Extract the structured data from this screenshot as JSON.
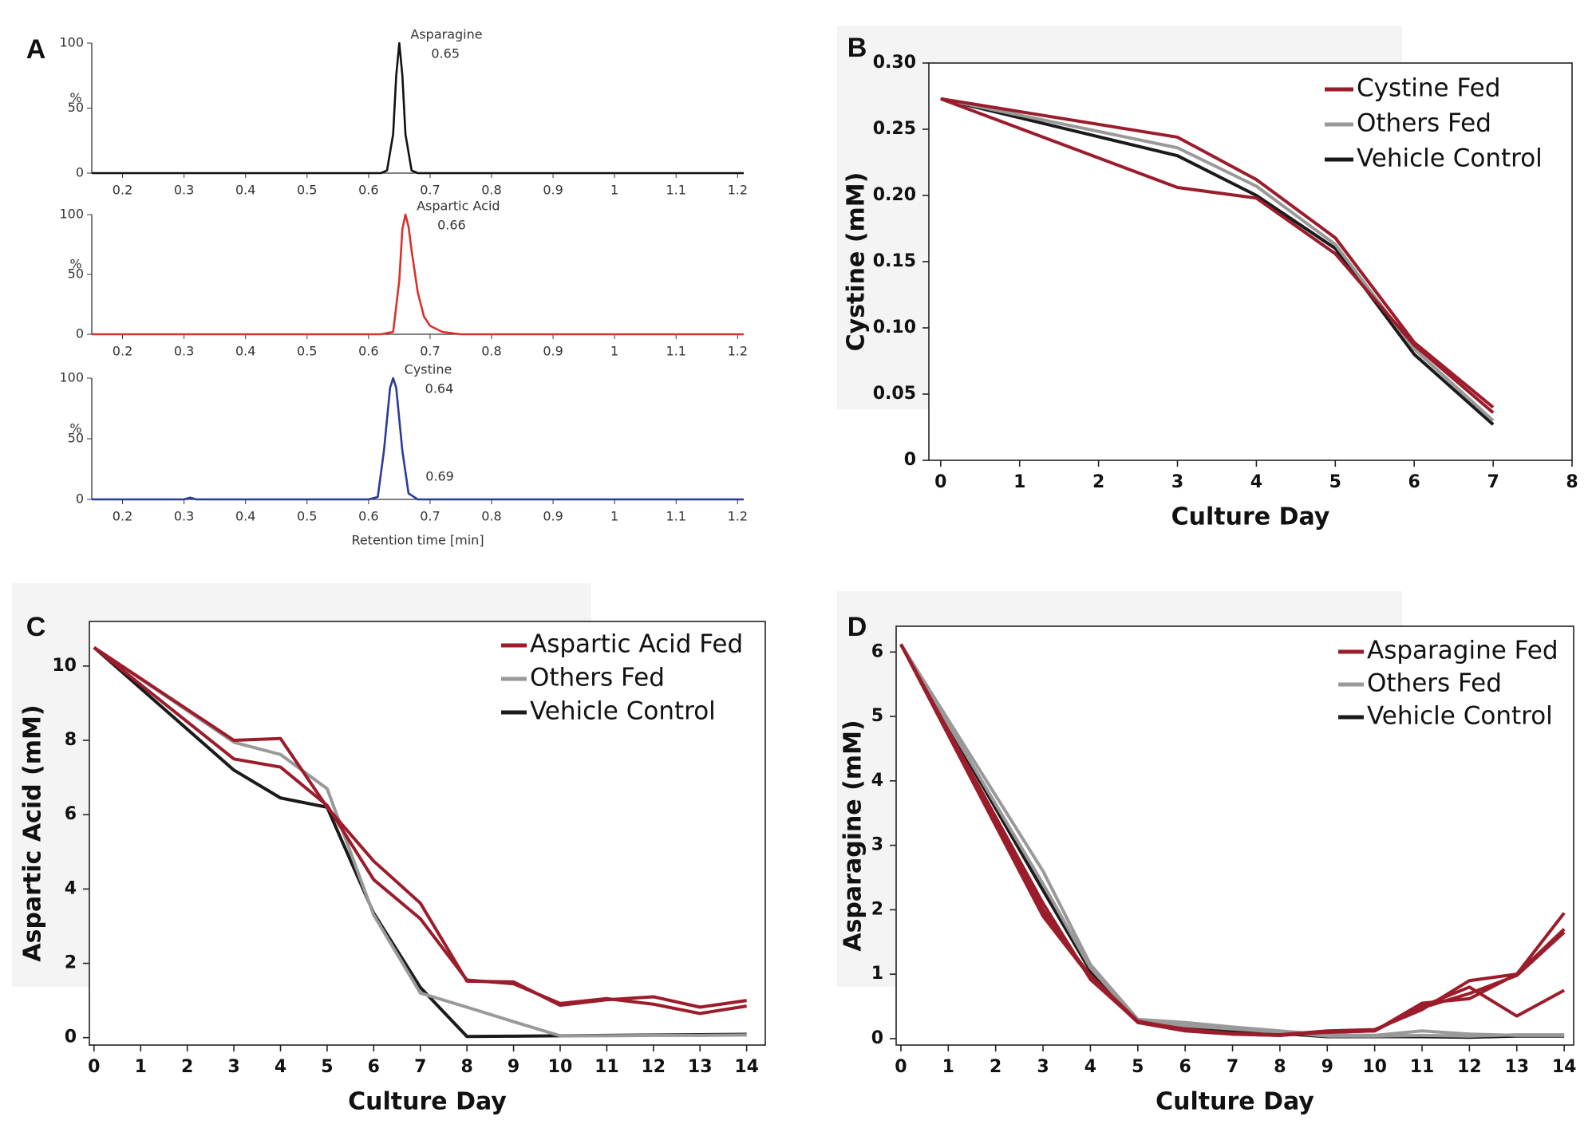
{
  "chart_data": [
    {
      "type": "chromatogram",
      "label": "A",
      "xlabel": "Retention time [min]",
      "ylabel": "%",
      "xlim": [
        0.15,
        1.21
      ],
      "xticks": [
        0.2,
        0.3,
        0.4,
        0.5,
        0.6,
        0.7,
        0.8,
        0.9,
        1,
        1.1,
        1.2
      ],
      "ylim": [
        0,
        100
      ],
      "yticks": [
        0,
        50,
        100
      ],
      "traces": [
        {
          "name": "Asparagine",
          "rt": 0.65,
          "color": "#111111",
          "x": [
            0.15,
            0.6,
            0.62,
            0.63,
            0.64,
            0.645,
            0.65,
            0.655,
            0.66,
            0.67,
            0.68,
            0.7,
            1.21
          ],
          "values": [
            0,
            0,
            0,
            2,
            30,
            75,
            100,
            75,
            30,
            2,
            0,
            0,
            0
          ]
        },
        {
          "name": "Aspartic Acid",
          "rt": 0.66,
          "color": "#d9312b",
          "x": [
            0.15,
            0.62,
            0.64,
            0.65,
            0.655,
            0.66,
            0.665,
            0.67,
            0.68,
            0.69,
            0.7,
            0.72,
            0.75,
            1.21
          ],
          "values": [
            0,
            0,
            2,
            45,
            88,
            100,
            90,
            70,
            35,
            15,
            7,
            2,
            0,
            0
          ]
        },
        {
          "name": "Cystine",
          "rt": 0.64,
          "secondary_rt": 0.69,
          "color": "#2a3a9a",
          "x": [
            0.15,
            0.3,
            0.31,
            0.32,
            0.6,
            0.615,
            0.625,
            0.635,
            0.64,
            0.645,
            0.655,
            0.665,
            0.68,
            1.21
          ],
          "values": [
            0,
            0,
            1.5,
            0,
            0,
            2,
            40,
            92,
            100,
            92,
            40,
            5,
            0,
            0
          ]
        }
      ]
    },
    {
      "type": "line",
      "label": "B",
      "xlabel": "Culture Day",
      "ylabel": "Cystine (mM)",
      "xlim": [
        -0.15,
        8
      ],
      "xticks": [
        0,
        1,
        2,
        3,
        4,
        5,
        6,
        7,
        8
      ],
      "ylim": [
        0,
        0.3
      ],
      "yticks": [
        0,
        0.05,
        {
          "value": 0.1,
          "label": "0.10"
        },
        0.15,
        {
          "value": 0.2,
          "label": "0.20"
        },
        0.25,
        {
          "value": 0.3,
          "label": "0.30"
        }
      ],
      "x": [
        0,
        3,
        4,
        5,
        6,
        7
      ],
      "series": [
        {
          "name": "Cystine Fed",
          "color": "#9b1c2a",
          "values": [
            [
              0.273,
              0.244,
              0.212,
              0.168,
              0.089,
              0.04
            ],
            [
              0.273,
              0.206,
              0.198,
              0.156,
              0.087,
              0.036
            ]
          ]
        },
        {
          "name": "Others Fed",
          "color": "#999999",
          "values": [
            [
              0.273,
              0.236,
              0.207,
              0.163,
              0.084,
              0.03
            ]
          ]
        },
        {
          "name": "Vehicle Control",
          "color": "#1a1a1a",
          "values": [
            [
              0.273,
              0.23,
              0.2,
              0.16,
              0.08,
              0.027
            ]
          ]
        }
      ]
    },
    {
      "type": "line",
      "label": "C",
      "xlabel": "Culture Day",
      "ylabel": "Aspartic Acid (mM)",
      "xlim": [
        -0.1,
        14.4
      ],
      "xticks": [
        0,
        1,
        2,
        3,
        4,
        5,
        6,
        7,
        8,
        9,
        10,
        11,
        12,
        13,
        14
      ],
      "ylim": [
        -0.2,
        11.2
      ],
      "yticks": [
        0,
        2,
        4,
        6,
        8,
        10
      ],
      "x": [
        0,
        3,
        4,
        5,
        6,
        7,
        8,
        9,
        10,
        11,
        12,
        13,
        14
      ],
      "series": [
        {
          "name": "Aspartic Acid Fed",
          "color": "#9b1c2a",
          "values": [
            [
              10.5,
              8.0,
              8.05,
              6.2,
              4.75,
              3.62,
              1.52,
              1.5,
              0.87,
              1.02,
              1.1,
              0.82,
              1.0
            ],
            [
              10.5,
              7.5,
              7.28,
              6.25,
              4.25,
              3.2,
              1.55,
              1.45,
              0.92,
              1.05,
              0.9,
              0.65,
              0.85
            ]
          ]
        },
        {
          "name": "Others Fed",
          "color": "#999999",
          "values": [
            [
              10.5,
              7.95,
              7.62,
              6.7,
              3.3,
              1.2,
              0.82,
              0.43,
              0.05,
              0.05,
              0.06,
              0.06,
              0.07
            ]
          ]
        },
        {
          "name": "Vehicle Control",
          "color": "#1a1a1a",
          "values": [
            [
              10.5,
              7.2,
              6.45,
              6.2,
              3.35,
              1.35,
              0.03,
              0.04,
              0.05,
              0.06,
              0.07,
              0.08,
              0.09
            ]
          ]
        }
      ]
    },
    {
      "type": "line",
      "label": "D",
      "xlabel": "Culture Day",
      "ylabel": "Asparagine (mM)",
      "xlim": [
        -0.1,
        14.2
      ],
      "xticks": [
        0,
        1,
        2,
        3,
        4,
        5,
        6,
        7,
        8,
        9,
        10,
        11,
        12,
        13,
        14
      ],
      "ylim": [
        -0.1,
        6.4
      ],
      "yticks": [
        0,
        1,
        2,
        3,
        4,
        5,
        6
      ],
      "x": [
        0,
        3,
        4,
        5,
        6,
        7,
        8,
        9,
        10,
        11,
        12,
        13,
        14
      ],
      "series": [
        {
          "name": "Asparagine Fed",
          "color": "#9b1c2a",
          "values": [
            [
              6.12,
              1.9,
              0.95,
              0.25,
              0.12,
              0.07,
              0.05,
              0.1,
              0.12,
              0.55,
              0.62,
              1.0,
              1.95
            ],
            [
              6.12,
              2.1,
              0.92,
              0.26,
              0.15,
              0.08,
              0.06,
              0.12,
              0.14,
              0.45,
              0.9,
              1.0,
              1.7
            ],
            [
              6.12,
              1.95,
              0.98,
              0.27,
              0.14,
              0.08,
              0.06,
              0.1,
              0.12,
              0.5,
              0.8,
              0.35,
              0.75
            ],
            [
              6.12,
              2.0,
              0.94,
              0.26,
              0.13,
              0.07,
              0.05,
              0.11,
              0.13,
              0.48,
              0.7,
              0.98,
              1.65
            ]
          ]
        },
        {
          "name": "Others Fed",
          "color": "#999999",
          "values": [
            [
              6.12,
              2.6,
              1.15,
              0.3,
              0.25,
              0.18,
              0.12,
              0.06,
              0.05,
              0.12,
              0.07,
              0.05,
              0.05
            ],
            [
              6.12,
              2.4,
              1.1,
              0.28,
              0.2,
              0.15,
              0.1,
              0.04,
              0.04,
              0.05,
              0.04,
              0.06,
              0.06
            ]
          ]
        },
        {
          "name": "Vehicle Control",
          "color": "#1a1a1a",
          "values": [
            [
              6.12,
              2.3,
              1.05,
              0.27,
              0.18,
              0.12,
              0.08,
              0.03,
              0.03,
              0.03,
              0.02,
              0.04,
              0.04
            ]
          ]
        }
      ]
    }
  ]
}
